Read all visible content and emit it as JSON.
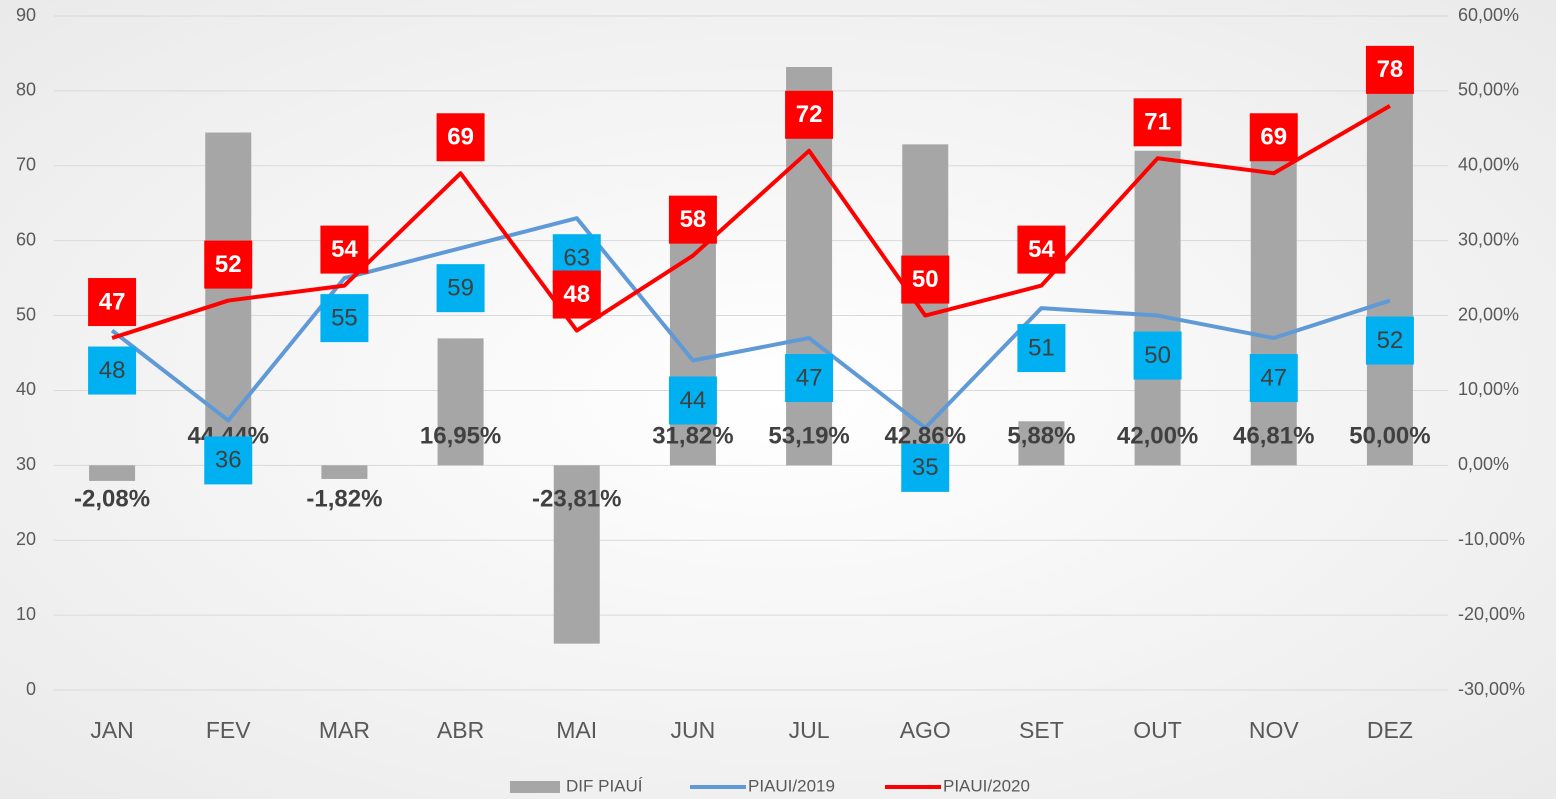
{
  "chart_data": {
    "type": "combo",
    "categories": [
      "JAN",
      "FEV",
      "MAR",
      "ABR",
      "MAI",
      "JUN",
      "JUL",
      "AGO",
      "SET",
      "OUT",
      "NOV",
      "DEZ"
    ],
    "series": [
      {
        "name": "DIF PIAUÍ",
        "type": "bar",
        "axis": "y2",
        "color": "#a6a6a6",
        "values": [
          -2.08,
          44.44,
          -1.82,
          16.95,
          -23.81,
          31.82,
          53.19,
          42.86,
          5.88,
          42.0,
          46.81,
          50.0
        ],
        "value_labels": [
          "-2,08%",
          "44,44%",
          "-1,82%",
          "16,95%",
          "-23,81%",
          "31,82%",
          "53,19%",
          "42,86%",
          "5,88%",
          "42,00%",
          "46,81%",
          "50,00%"
        ]
      },
      {
        "name": "PIAUI/2019",
        "type": "line",
        "color": "#5f9ad6",
        "label_color": "#00b0f0",
        "values": [
          48,
          36,
          55,
          59,
          63,
          44,
          47,
          35,
          51,
          50,
          47,
          52
        ]
      },
      {
        "name": "PIAUI/2020",
        "type": "line",
        "color": "#ff0000",
        "label_color": "#ff0000",
        "values": [
          47,
          52,
          54,
          69,
          48,
          58,
          72,
          50,
          54,
          71,
          69,
          78
        ]
      }
    ],
    "ylim": [
      0,
      90
    ],
    "yticks": [
      0,
      10,
      20,
      30,
      40,
      50,
      60,
      70,
      80,
      90
    ],
    "y2lim": [
      -30,
      60
    ],
    "y2ticks": [
      {
        "value": -30,
        "label": "-30,00%"
      },
      {
        "value": -20,
        "label": "-20,00%"
      },
      {
        "value": -10,
        "label": "-10,00%"
      },
      {
        "value": 0,
        "label": "0,00%"
      },
      {
        "value": 10,
        "label": "10,00%"
      },
      {
        "value": 20,
        "label": "20,00%"
      },
      {
        "value": 30,
        "label": "30,00%"
      },
      {
        "value": 40,
        "label": "40,00%"
      },
      {
        "value": 50,
        "label": "50,00%"
      },
      {
        "value": 60,
        "label": "60,00%"
      }
    ],
    "grid": true,
    "legend": "bottom"
  }
}
